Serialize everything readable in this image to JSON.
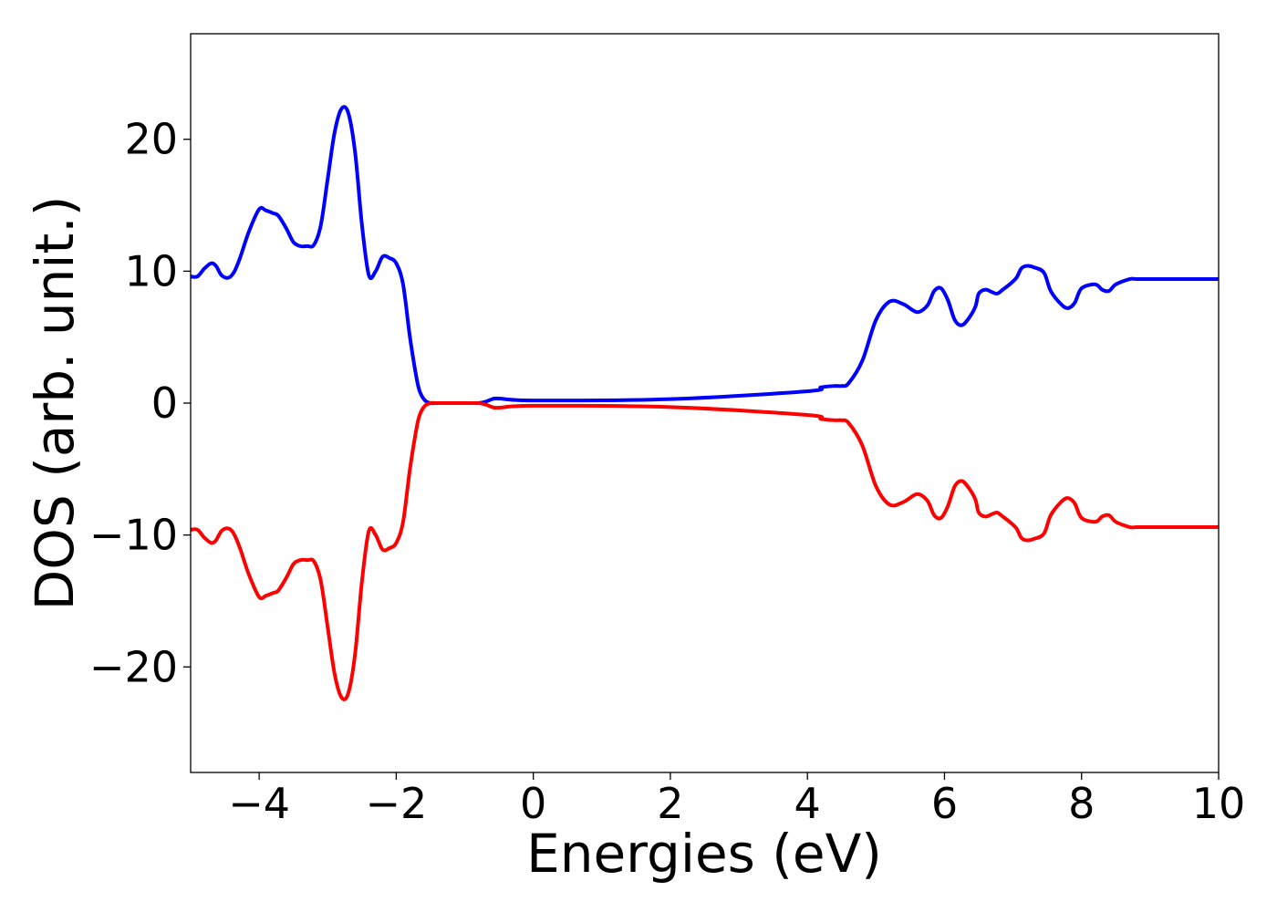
{
  "chart_data": {
    "type": "line",
    "title": "",
    "xlabel": "Energies (eV)",
    "ylabel": "DOS (arb. unit.)",
    "xlim": [
      -5,
      10
    ],
    "ylim": [
      -28,
      28
    ],
    "xticks": [
      -4,
      -2,
      0,
      2,
      4,
      6,
      8,
      10
    ],
    "xtick_labels": [
      "−4",
      "−2",
      "0",
      "2",
      "4",
      "6",
      "8",
      "10"
    ],
    "yticks": [
      -20,
      -10,
      0,
      10,
      20
    ],
    "ytick_labels": [
      "−20",
      "−10",
      "0",
      "10",
      "20"
    ],
    "grid": false,
    "legend": "none",
    "series": [
      {
        "color": "#0000ff",
        "x": [
          -5.0,
          -4.9,
          -4.8,
          -4.7,
          -4.63,
          -4.55,
          -4.45,
          -4.37,
          -4.28,
          -4.15,
          -4.0,
          -3.9,
          -3.8,
          -3.72,
          -3.6,
          -3.5,
          -3.4,
          -3.3,
          -3.2,
          -3.1,
          -3.0,
          -2.9,
          -2.8,
          -2.7,
          -2.6,
          -2.5,
          -2.4,
          -2.3,
          -2.2,
          -2.1,
          -2.0,
          -1.9,
          -1.8,
          -1.7,
          -1.65,
          -1.58,
          -1.5,
          -1.42,
          -1.3,
          -1.2,
          -1.1,
          -1.0,
          -0.9,
          -0.8,
          -0.7,
          -0.6,
          -0.5,
          0.0,
          2.0,
          4.0,
          4.2,
          4.4,
          4.5,
          4.6,
          4.8,
          5.0,
          5.2,
          5.4,
          5.6,
          5.75,
          5.85,
          5.95,
          6.05,
          6.15,
          6.25,
          6.35,
          6.45,
          6.5,
          6.6,
          6.7,
          6.77,
          6.85,
          6.95,
          7.05,
          7.12,
          7.2,
          7.3,
          7.45,
          7.55,
          7.7,
          7.8,
          7.9,
          8.0,
          8.2,
          8.3,
          8.4,
          8.5,
          8.7,
          8.8,
          8.9,
          9.0,
          9.1,
          9.2,
          9.3,
          9.4,
          9.5,
          9.6,
          9.7,
          9.8,
          9.9,
          10.0
        ],
        "y": [
          9.6,
          9.6,
          10.2,
          10.6,
          10.4,
          9.7,
          9.5,
          9.9,
          11.0,
          13.0,
          14.7,
          14.6,
          14.4,
          14.2,
          13.2,
          12.2,
          11.9,
          11.9,
          12.0,
          13.5,
          17.0,
          20.5,
          22.3,
          22.0,
          19.0,
          13.5,
          9.7,
          10.0,
          11.1,
          11.0,
          10.6,
          9.0,
          5.0,
          1.8,
          0.8,
          0.2,
          0.0,
          0.0,
          0.0,
          0.0,
          0.0,
          0.0,
          0.0,
          0.0,
          0.1,
          0.3,
          0.35,
          0.2,
          0.3,
          0.9,
          1.2,
          1.3,
          1.3,
          1.5,
          3.2,
          6.3,
          7.7,
          7.5,
          6.9,
          7.4,
          8.5,
          8.7,
          7.8,
          6.3,
          5.9,
          6.4,
          7.3,
          8.3,
          8.6,
          8.4,
          8.3,
          8.6,
          9.0,
          9.5,
          10.2,
          10.4,
          10.3,
          9.9,
          8.5,
          7.5,
          7.2,
          7.6,
          8.7,
          9.0,
          8.6,
          8.5,
          9.0,
          9.4,
          9.4,
          9.4,
          9.4,
          9.4,
          9.4,
          9.4,
          9.4,
          9.4,
          9.4,
          9.4,
          9.4,
          9.4,
          9.4
        ]
      },
      {
        "color": "#ff0000",
        "x": [
          -5.0,
          -4.9,
          -4.8,
          -4.7,
          -4.63,
          -4.55,
          -4.45,
          -4.37,
          -4.28,
          -4.15,
          -4.0,
          -3.9,
          -3.8,
          -3.72,
          -3.6,
          -3.5,
          -3.4,
          -3.3,
          -3.2,
          -3.1,
          -3.0,
          -2.9,
          -2.8,
          -2.7,
          -2.6,
          -2.5,
          -2.4,
          -2.3,
          -2.2,
          -2.1,
          -2.0,
          -1.9,
          -1.8,
          -1.7,
          -1.65,
          -1.58,
          -1.5,
          -1.42,
          -1.3,
          -1.2,
          -1.1,
          -1.0,
          -0.9,
          -0.8,
          -0.7,
          -0.6,
          -0.5,
          0.0,
          2.0,
          4.0,
          4.2,
          4.4,
          4.5,
          4.6,
          4.8,
          5.0,
          5.2,
          5.4,
          5.6,
          5.75,
          5.85,
          5.95,
          6.05,
          6.15,
          6.25,
          6.35,
          6.45,
          6.5,
          6.6,
          6.7,
          6.77,
          6.85,
          6.95,
          7.05,
          7.12,
          7.2,
          7.3,
          7.45,
          7.55,
          7.7,
          7.8,
          7.9,
          8.0,
          8.2,
          8.3,
          8.4,
          8.5,
          8.7,
          8.8,
          8.9,
          9.0,
          9.1,
          9.2,
          9.3,
          9.4,
          9.5,
          9.6,
          9.7,
          9.8,
          9.9,
          10.0
        ],
        "y": [
          -9.6,
          -9.6,
          -10.2,
          -10.6,
          -10.4,
          -9.7,
          -9.5,
          -9.9,
          -11.0,
          -13.0,
          -14.7,
          -14.6,
          -14.4,
          -14.2,
          -13.2,
          -12.2,
          -11.9,
          -11.9,
          -12.0,
          -13.5,
          -17.0,
          -20.5,
          -22.3,
          -22.0,
          -19.0,
          -13.5,
          -9.7,
          -10.0,
          -11.1,
          -11.0,
          -10.6,
          -9.0,
          -5.0,
          -1.8,
          -0.8,
          -0.2,
          0.0,
          0.0,
          0.0,
          0.0,
          0.0,
          0.0,
          0.0,
          0.0,
          -0.1,
          -0.3,
          -0.35,
          -0.2,
          -0.3,
          -0.9,
          -1.2,
          -1.3,
          -1.3,
          -1.5,
          -3.2,
          -6.3,
          -7.7,
          -7.5,
          -6.9,
          -7.4,
          -8.5,
          -8.7,
          -7.8,
          -6.3,
          -5.9,
          -6.4,
          -7.3,
          -8.3,
          -8.6,
          -8.4,
          -8.3,
          -8.6,
          -9.0,
          -9.5,
          -10.2,
          -10.4,
          -10.3,
          -9.9,
          -8.5,
          -7.5,
          -7.2,
          -7.6,
          -8.7,
          -9.0,
          -8.6,
          -8.5,
          -9.0,
          -9.4,
          -9.4,
          -9.4,
          -9.4,
          -9.4,
          -9.4,
          -9.4,
          -9.4,
          -9.4,
          -9.4,
          -9.4,
          -9.4,
          -9.4,
          -9.4
        ]
      }
    ]
  }
}
